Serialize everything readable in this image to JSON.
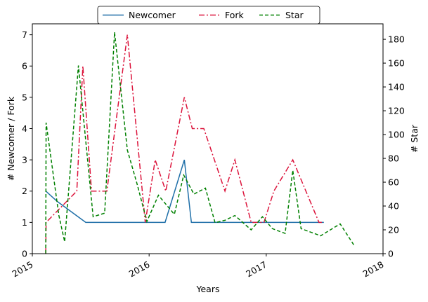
{
  "chart_data": {
    "type": "line",
    "xlabel": "Years",
    "ylabel_left": "# Newcomer / Fork",
    "ylabel_right": "# Star",
    "xlim": [
      "2015-01-01",
      "2018-01-01"
    ],
    "ylim_left": [
      0,
      7.35
    ],
    "ylim_right": [
      0,
      193
    ],
    "x_ticks": [
      {
        "date": "2015-01-01",
        "label": "2015"
      },
      {
        "date": "2016-01-01",
        "label": "2016"
      },
      {
        "date": "2017-01-01",
        "label": "2017"
      },
      {
        "date": "2018-01-01",
        "label": "2018"
      }
    ],
    "y_ticks_left": [
      "0",
      "1",
      "2",
      "3",
      "4",
      "5",
      "6",
      "7"
    ],
    "y_ticks_right": [
      "0",
      "20",
      "40",
      "60",
      "80",
      "100",
      "120",
      "140",
      "160",
      "180"
    ],
    "grid": false,
    "legend_position": "top-center",
    "series": [
      {
        "name": "Newcomer",
        "axis": "left",
        "color": "#1f6fa8",
        "style": "solid",
        "points": [
          {
            "x": "2015-02-12",
            "y": 2
          },
          {
            "x": "2015-03-20",
            "y": 1.67
          },
          {
            "x": "2015-06-17",
            "y": 1
          },
          {
            "x": "2015-09-16",
            "y": 1
          },
          {
            "x": "2015-12-31",
            "y": 1
          },
          {
            "x": "2016-02-20",
            "y": 1
          },
          {
            "x": "2016-04-20",
            "y": 3
          },
          {
            "x": "2016-05-12",
            "y": 1
          },
          {
            "x": "2016-09-01",
            "y": 1
          },
          {
            "x": "2017-01-01",
            "y": 1
          },
          {
            "x": "2017-06-30",
            "y": 1
          }
        ]
      },
      {
        "name": "Fork",
        "axis": "left",
        "color": "#dc143c",
        "style": "dashdot",
        "points": [
          {
            "x": "2015-02-12",
            "y": 0
          },
          {
            "x": "2015-02-13",
            "y": 1
          },
          {
            "x": "2015-05-20",
            "y": 2
          },
          {
            "x": "2015-06-08",
            "y": 6
          },
          {
            "x": "2015-07-05",
            "y": 2
          },
          {
            "x": "2015-08-22",
            "y": 2
          },
          {
            "x": "2015-10-25",
            "y": 7
          },
          {
            "x": "2015-12-20",
            "y": 1
          },
          {
            "x": "2016-01-20",
            "y": 3
          },
          {
            "x": "2016-02-22",
            "y": 2
          },
          {
            "x": "2016-04-20",
            "y": 5
          },
          {
            "x": "2016-05-15",
            "y": 4
          },
          {
            "x": "2016-06-20",
            "y": 4
          },
          {
            "x": "2016-08-25",
            "y": 2
          },
          {
            "x": "2016-09-25",
            "y": 3
          },
          {
            "x": "2016-11-15",
            "y": 1
          },
          {
            "x": "2016-12-25",
            "y": 1
          },
          {
            "x": "2017-01-25",
            "y": 2
          },
          {
            "x": "2017-03-25",
            "y": 3
          },
          {
            "x": "2017-06-15",
            "y": 1
          },
          {
            "x": "2017-06-30",
            "y": 1
          }
        ]
      },
      {
        "name": "Star",
        "axis": "right",
        "color": "#008000",
        "style": "dashed",
        "points": [
          {
            "x": "2015-02-12",
            "y": 0
          },
          {
            "x": "2015-02-13",
            "y": 110
          },
          {
            "x": "2015-03-25",
            "y": 32
          },
          {
            "x": "2015-04-12",
            "y": 10
          },
          {
            "x": "2015-05-25",
            "y": 158
          },
          {
            "x": "2015-07-10",
            "y": 31
          },
          {
            "x": "2015-08-15",
            "y": 34
          },
          {
            "x": "2015-09-15",
            "y": 186
          },
          {
            "x": "2015-10-25",
            "y": 87
          },
          {
            "x": "2015-11-25",
            "y": 58
          },
          {
            "x": "2015-12-25",
            "y": 27
          },
          {
            "x": "2016-01-30",
            "y": 49
          },
          {
            "x": "2016-03-20",
            "y": 33
          },
          {
            "x": "2016-04-18",
            "y": 66
          },
          {
            "x": "2016-05-20",
            "y": 50
          },
          {
            "x": "2016-06-25",
            "y": 55
          },
          {
            "x": "2016-07-25",
            "y": 26
          },
          {
            "x": "2016-08-25",
            "y": 28
          },
          {
            "x": "2016-09-25",
            "y": 32
          },
          {
            "x": "2016-11-15",
            "y": 20
          },
          {
            "x": "2016-12-20",
            "y": 31
          },
          {
            "x": "2017-01-20",
            "y": 21
          },
          {
            "x": "2017-03-01",
            "y": 17
          },
          {
            "x": "2017-03-25",
            "y": 70
          },
          {
            "x": "2017-04-20",
            "y": 21
          },
          {
            "x": "2017-06-20",
            "y": 15
          },
          {
            "x": "2017-08-20",
            "y": 25
          },
          {
            "x": "2017-10-05",
            "y": 6
          }
        ]
      }
    ]
  }
}
